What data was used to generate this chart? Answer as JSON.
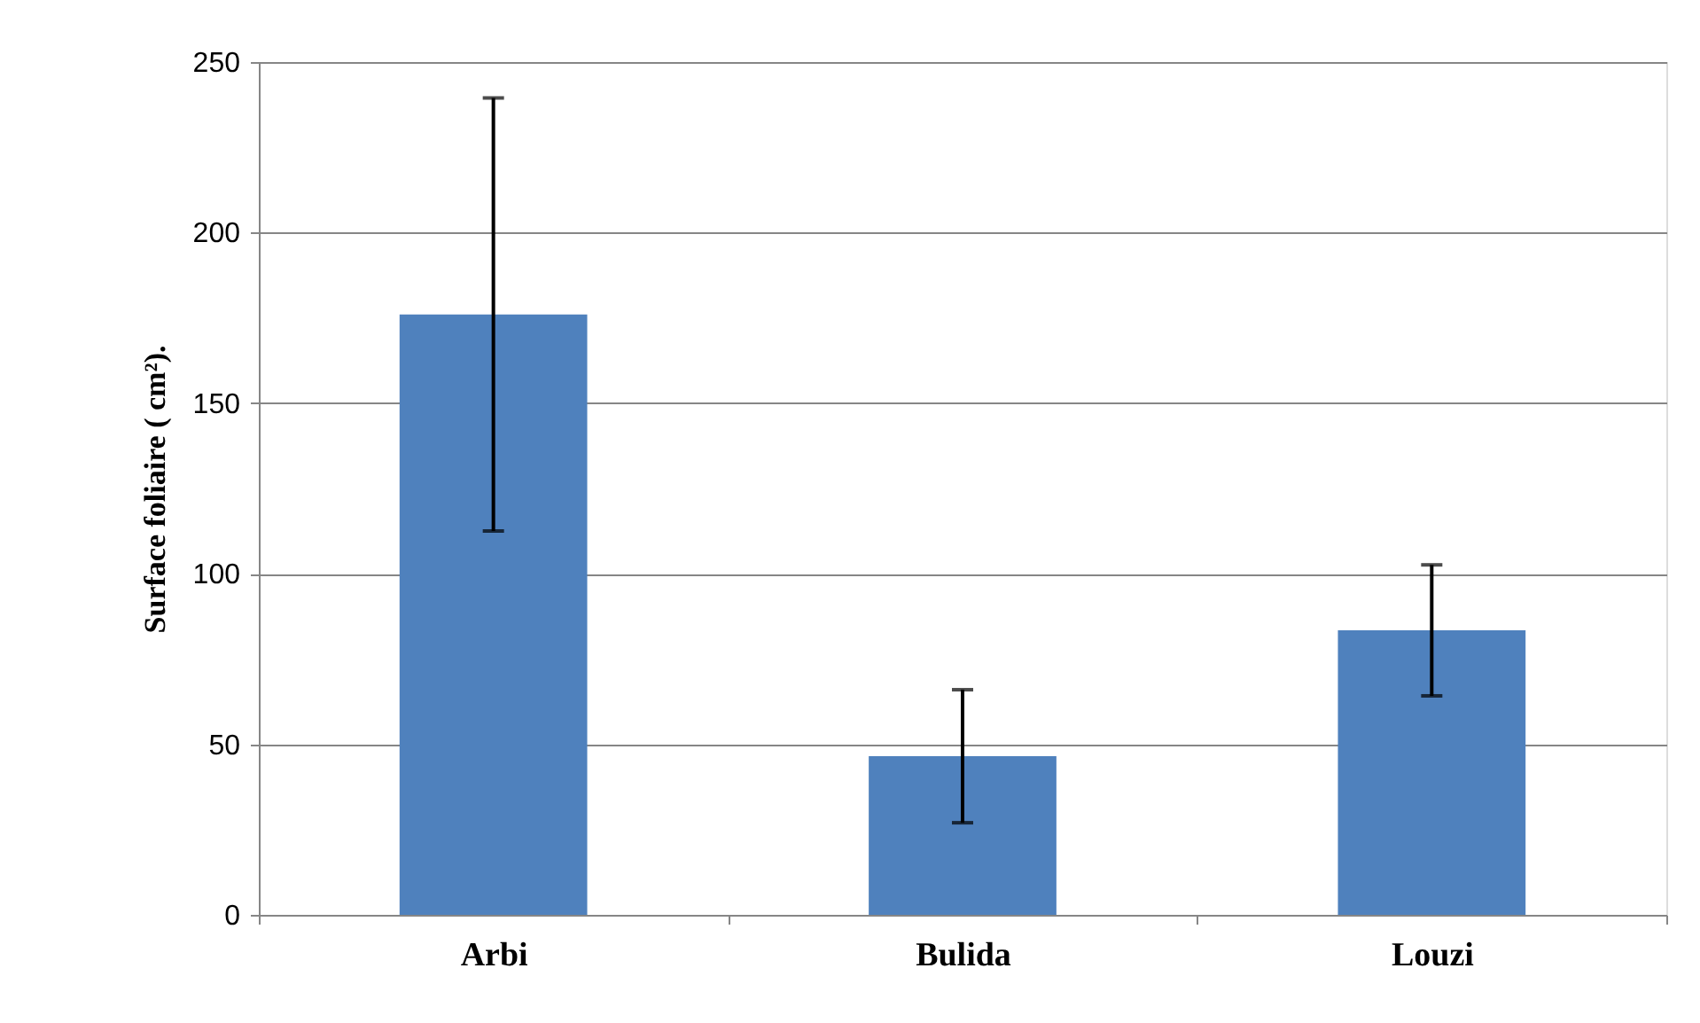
{
  "chart_data": {
    "type": "bar",
    "categories": [
      "Arbi",
      "Bulida",
      "Louzi"
    ],
    "values": [
      176,
      46.5,
      83.4
    ],
    "errors": [
      63.5,
      19.5,
      19.2
    ],
    "color": "#4f81bd",
    "ylabel": "Surface foliaire ( cm²).",
    "ylim": [
      0,
      250
    ],
    "yticks": [
      0,
      50,
      100,
      150,
      200,
      250
    ],
    "grid": "y"
  }
}
